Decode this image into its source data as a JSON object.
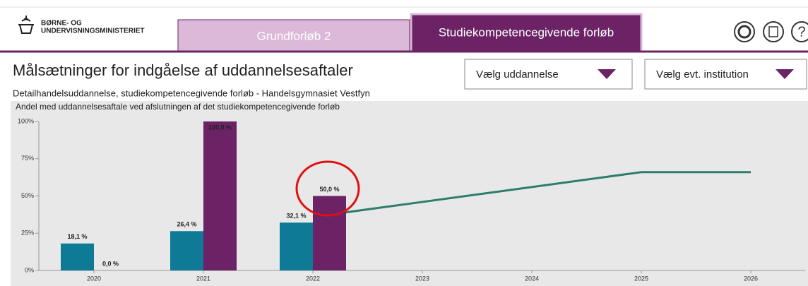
{
  "header": {
    "logo_line1": "BØRNE- OG",
    "logo_line2": "UNDERVISNINGSMINISTERIET",
    "tabs": [
      "Grundforløb 2",
      "Studiekompetencegivende forløb"
    ],
    "help_icon": "?"
  },
  "page_title": "Målsætninger for indgåelse af uddannelsesaftaler",
  "dropdowns": [
    "Vælg uddannelse",
    "Vælg evt. institution"
  ],
  "subtitle": "Detailhandelsuddannelse, studiekompetencegivende forløb - Handelsgymnasiet Vestfyn",
  "chart_data": {
    "type": "bar",
    "title": "Andel med uddannelsesaftale ved afslutningen af det studiekompetencegivende forløb",
    "categories": [
      "2020",
      "2021",
      "2022",
      "2023",
      "2024",
      "2025",
      "2026"
    ],
    "series": [
      {
        "color": "#0f7a96",
        "values": [
          18.1,
          26.4,
          32.1,
          null,
          null,
          null,
          null
        ],
        "value_labels": [
          "18,1 %",
          "26,4 %",
          "32,1 %",
          null,
          null,
          null,
          null
        ]
      },
      {
        "color": "#6b2366",
        "values": [
          0.0,
          100.0,
          50.0,
          null,
          null,
          null,
          null
        ],
        "value_labels": [
          "0,0 %",
          "100,0 %",
          "50,0 %",
          null,
          null,
          null,
          null
        ]
      },
      {
        "type": "line",
        "color": "#2e7d6b",
        "values": [
          null,
          null,
          36,
          46,
          56,
          66,
          66
        ]
      }
    ],
    "ylim": [
      0,
      100
    ],
    "yticks": [
      {
        "value": 0,
        "label": "0%"
      },
      {
        "value": 25,
        "label": "25%"
      },
      {
        "value": 50,
        "label": "50%"
      },
      {
        "value": 75,
        "label": "75%"
      },
      {
        "value": 100,
        "label": "100%"
      }
    ]
  }
}
